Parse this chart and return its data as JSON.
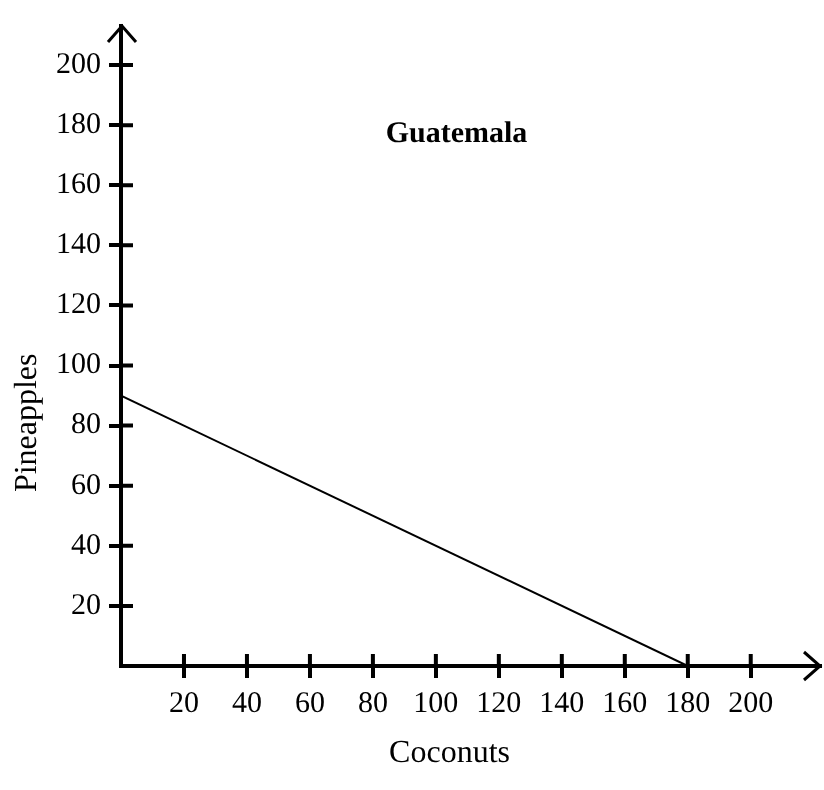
{
  "chart_data": {
    "type": "line",
    "title": "Guatemala",
    "xlabel": "Coconuts",
    "ylabel": "Pineapples",
    "x": [
      0,
      180
    ],
    "series": [
      {
        "color": "#000000",
        "values": [
          90,
          0
        ]
      }
    ],
    "xlim": [
      0,
      222
    ],
    "ylim": [
      0,
      213
    ],
    "xticks": [
      20,
      40,
      60,
      80,
      100,
      120,
      140,
      160,
      180,
      200
    ],
    "yticks": [
      20,
      40,
      60,
      80,
      100,
      120,
      140,
      160,
      180,
      200
    ],
    "grid": false,
    "legend": false,
    "marker": "none",
    "line_style": "solid"
  }
}
